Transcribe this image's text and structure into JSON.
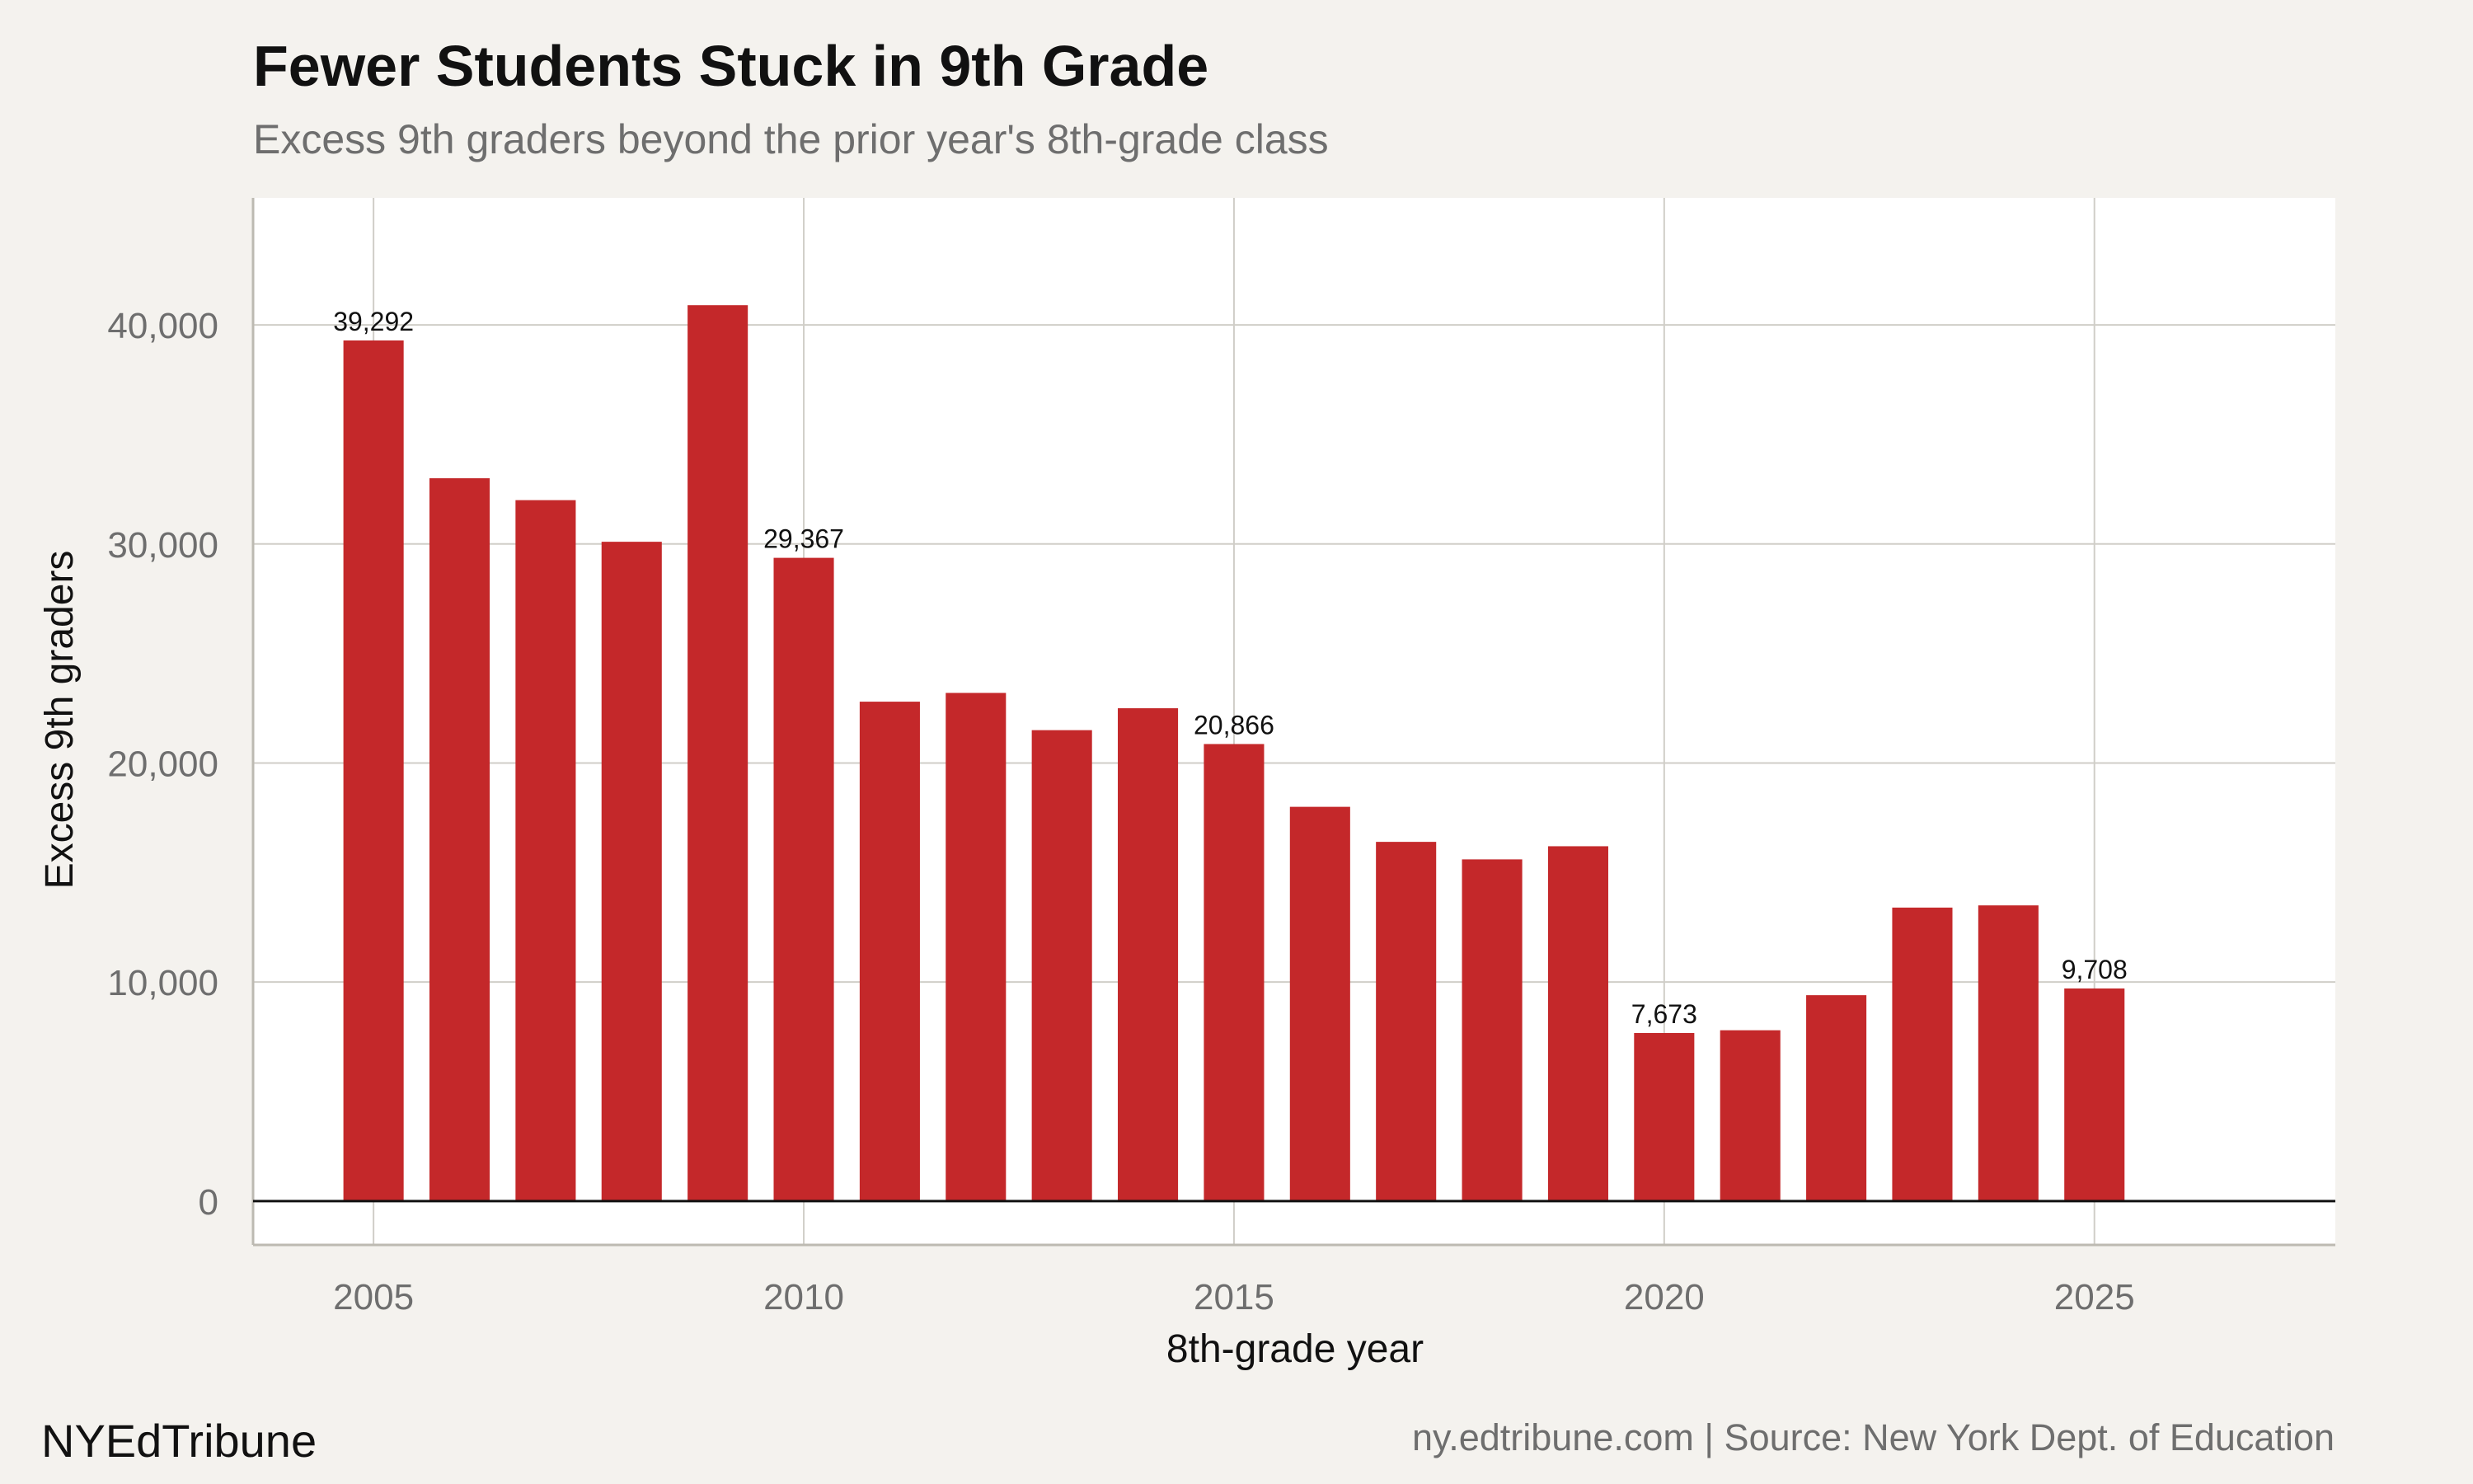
{
  "header": {
    "title": "Fewer Students Stuck in 9th Grade",
    "subtitle": "Excess 9th graders beyond the prior year's 8th-grade class"
  },
  "footer": {
    "brand": "NYEdTribune",
    "source": "ny.edtribune.com | Source: New York Dept. of Education"
  },
  "colors": {
    "bar": "#c4282a",
    "panel": "#ffffff",
    "background": "#f4f2ee",
    "grid": "#d0cec8",
    "zero_line": "#111111"
  },
  "chart_data": {
    "type": "bar",
    "title": "Fewer Students Stuck in 9th Grade",
    "subtitle": "Excess 9th graders beyond the prior year's 8th-grade class",
    "xlabel": "8th-grade year",
    "ylabel": "Excess 9th graders",
    "x": [
      2005,
      2006,
      2007,
      2008,
      2009,
      2010,
      2011,
      2012,
      2013,
      2014,
      2015,
      2016,
      2017,
      2018,
      2019,
      2020,
      2021,
      2022,
      2023,
      2024,
      2025
    ],
    "values": [
      39292,
      33000,
      32000,
      30100,
      40900,
      29367,
      22800,
      23200,
      21500,
      22500,
      20866,
      18000,
      16400,
      15600,
      16200,
      7673,
      7800,
      9400,
      13400,
      13500,
      9708
    ],
    "labeled": [
      {
        "x": 2005,
        "text": "39,292"
      },
      {
        "x": 2010,
        "text": "29,367"
      },
      {
        "x": 2015,
        "text": "20,866"
      },
      {
        "x": 2020,
        "text": "7,673"
      },
      {
        "x": 2025,
        "text": "9,708"
      }
    ],
    "xlim": [
      2003.6,
      2027.8
    ],
    "ylim": [
      -2000,
      45800
    ],
    "xticks": [
      2005,
      2010,
      2015,
      2020,
      2025
    ],
    "xtick_labels": [
      "2005",
      "2010",
      "2015",
      "2020",
      "2025"
    ],
    "yticks": [
      0,
      10000,
      20000,
      30000,
      40000
    ],
    "ytick_labels": [
      "0",
      "10,000",
      "20,000",
      "30,000",
      "40,000"
    ],
    "grid": true,
    "legend": "none"
  }
}
